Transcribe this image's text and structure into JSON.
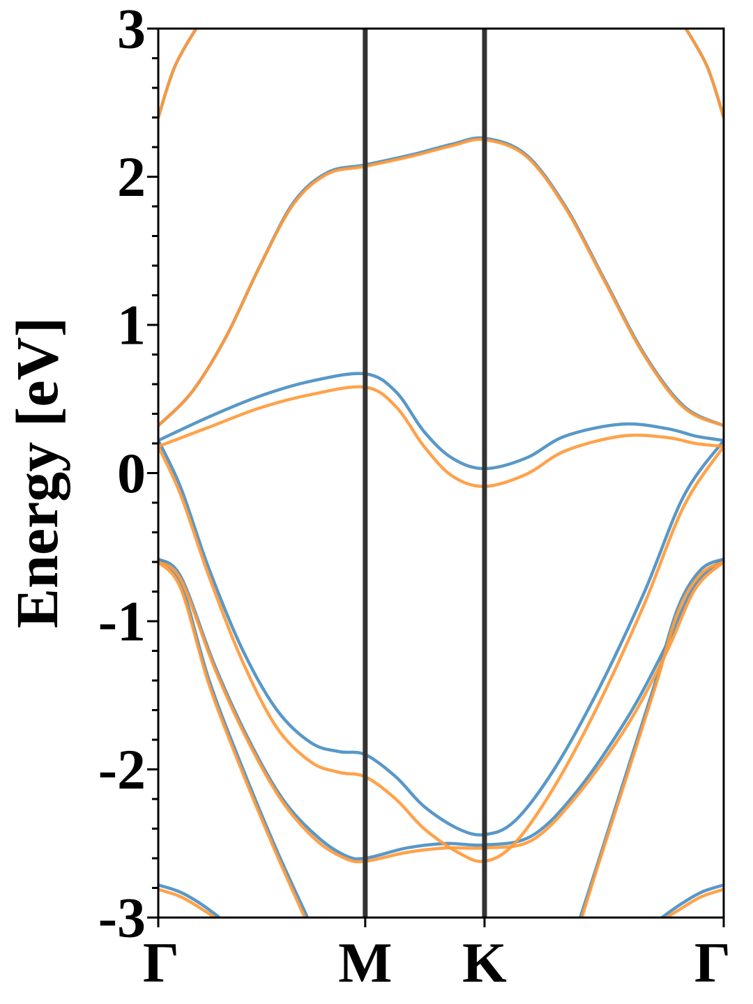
{
  "chart_data": {
    "type": "line",
    "title": "",
    "xlabel": "",
    "ylabel": "Energy [eV]",
    "ylim": [
      -3,
      3
    ],
    "yticks": [
      "3",
      "2",
      "1",
      "0",
      "-1",
      "-2",
      "-3"
    ],
    "xrange": [
      0,
      1
    ],
    "high_symmetry_points": [
      {
        "label": "Γ",
        "x": 0.0
      },
      {
        "label": "M",
        "x": 0.366
      },
      {
        "label": "K",
        "x": 0.577
      },
      {
        "label": "Γ",
        "x": 1.0
      }
    ],
    "grid": false,
    "legend": "none",
    "colors": {
      "series_a": "#4a8fc2",
      "series_b": "#ff9a3c",
      "vline": "#333333"
    },
    "series": [
      {
        "color": "#4a8fc2",
        "bands": [
          [
            [
              0,
              2.4
            ],
            [
              0.03,
              2.75
            ],
            [
              0.075,
              3.05
            ]
          ],
          [
            [
              0.925,
              3.05
            ],
            [
              0.97,
              2.75
            ],
            [
              1,
              2.4
            ]
          ],
          [
            [
              0,
              0.32
            ],
            [
              0.06,
              0.55
            ],
            [
              0.12,
              0.92
            ],
            [
              0.18,
              1.4
            ],
            [
              0.24,
              1.83
            ],
            [
              0.3,
              2.03
            ],
            [
              0.366,
              2.08
            ],
            [
              0.45,
              2.15
            ],
            [
              0.52,
              2.22
            ],
            [
              0.577,
              2.26
            ],
            [
              0.65,
              2.15
            ],
            [
              0.72,
              1.8
            ],
            [
              0.79,
              1.3
            ],
            [
              0.86,
              0.8
            ],
            [
              0.93,
              0.45
            ],
            [
              1,
              0.32
            ]
          ],
          [
            [
              0,
              0.22
            ],
            [
              0.09,
              0.38
            ],
            [
              0.18,
              0.52
            ],
            [
              0.27,
              0.62
            ],
            [
              0.366,
              0.67
            ],
            [
              0.42,
              0.55
            ],
            [
              0.47,
              0.28
            ],
            [
              0.52,
              0.1
            ],
            [
              0.577,
              0.03
            ],
            [
              0.65,
              0.1
            ],
            [
              0.72,
              0.25
            ],
            [
              0.82,
              0.33
            ],
            [
              0.9,
              0.3
            ],
            [
              0.95,
              0.25
            ],
            [
              1,
              0.22
            ]
          ],
          [
            [
              0,
              0.22
            ],
            [
              0.04,
              -0.1
            ],
            [
              0.09,
              -0.65
            ],
            [
              0.15,
              -1.2
            ],
            [
              0.21,
              -1.6
            ],
            [
              0.27,
              -1.82
            ],
            [
              0.32,
              -1.88
            ],
            [
              0.366,
              -1.9
            ],
            [
              0.42,
              -2.05
            ],
            [
              0.47,
              -2.25
            ],
            [
              0.53,
              -2.4
            ],
            [
              0.577,
              -2.44
            ],
            [
              0.63,
              -2.35
            ],
            [
              0.7,
              -2.0
            ],
            [
              0.78,
              -1.45
            ],
            [
              0.86,
              -0.8
            ],
            [
              0.93,
              -0.15
            ],
            [
              1,
              0.22
            ]
          ],
          [
            [
              0,
              -0.58
            ],
            [
              0.04,
              -0.7
            ],
            [
              0.1,
              -1.3
            ],
            [
              0.16,
              -1.8
            ],
            [
              0.22,
              -2.2
            ],
            [
              0.28,
              -2.45
            ],
            [
              0.33,
              -2.58
            ],
            [
              0.366,
              -2.6
            ],
            [
              0.44,
              -2.53
            ],
            [
              0.51,
              -2.5
            ],
            [
              0.577,
              -2.51
            ],
            [
              0.66,
              -2.45
            ],
            [
              0.74,
              -2.15
            ],
            [
              0.83,
              -1.65
            ],
            [
              0.9,
              -1.15
            ],
            [
              0.95,
              -0.75
            ],
            [
              1,
              -0.58
            ]
          ],
          [
            [
              0,
              -0.58
            ],
            [
              0.04,
              -0.75
            ],
            [
              0.09,
              -1.4
            ],
            [
              0.15,
              -2.0
            ],
            [
              0.21,
              -2.55
            ],
            [
              0.27,
              -3.05
            ]
          ],
          [
            [
              0.742,
              -3.05
            ],
            [
              0.78,
              -2.6
            ],
            [
              0.83,
              -2.0
            ],
            [
              0.88,
              -1.4
            ],
            [
              0.92,
              -0.9
            ],
            [
              0.96,
              -0.65
            ],
            [
              1,
              -0.58
            ]
          ],
          [
            [
              0,
              -2.78
            ],
            [
              0.04,
              -2.83
            ],
            [
              0.08,
              -2.92
            ],
            [
              0.125,
              -3.05
            ]
          ],
          [
            [
              0.873,
              -3.05
            ],
            [
              0.92,
              -2.92
            ],
            [
              0.96,
              -2.83
            ],
            [
              1,
              -2.78
            ]
          ]
        ]
      },
      {
        "color": "#ff9a3c",
        "bands": [
          [
            [
              0,
              2.4
            ],
            [
              0.03,
              2.75
            ],
            [
              0.075,
              3.05
            ]
          ],
          [
            [
              0.925,
              3.05
            ],
            [
              0.97,
              2.75
            ],
            [
              1,
              2.4
            ]
          ],
          [
            [
              0,
              0.32
            ],
            [
              0.06,
              0.55
            ],
            [
              0.12,
              0.92
            ],
            [
              0.18,
              1.4
            ],
            [
              0.24,
              1.82
            ],
            [
              0.3,
              2.02
            ],
            [
              0.366,
              2.07
            ],
            [
              0.45,
              2.14
            ],
            [
              0.52,
              2.21
            ],
            [
              0.577,
              2.25
            ],
            [
              0.65,
              2.14
            ],
            [
              0.72,
              1.79
            ],
            [
              0.79,
              1.29
            ],
            [
              0.86,
              0.79
            ],
            [
              0.93,
              0.44
            ],
            [
              1,
              0.32
            ]
          ],
          [
            [
              0,
              0.18
            ],
            [
              0.09,
              0.31
            ],
            [
              0.18,
              0.44
            ],
            [
              0.27,
              0.53
            ],
            [
              0.366,
              0.58
            ],
            [
              0.42,
              0.45
            ],
            [
              0.47,
              0.18
            ],
            [
              0.52,
              -0.02
            ],
            [
              0.577,
              -0.09
            ],
            [
              0.65,
              -0.01
            ],
            [
              0.72,
              0.15
            ],
            [
              0.82,
              0.25
            ],
            [
              0.9,
              0.24
            ],
            [
              0.95,
              0.2
            ],
            [
              1,
              0.18
            ]
          ],
          [
            [
              0,
              0.18
            ],
            [
              0.04,
              -0.15
            ],
            [
              0.09,
              -0.7
            ],
            [
              0.15,
              -1.28
            ],
            [
              0.21,
              -1.72
            ],
            [
              0.27,
              -1.95
            ],
            [
              0.32,
              -2.02
            ],
            [
              0.366,
              -2.05
            ],
            [
              0.42,
              -2.2
            ],
            [
              0.47,
              -2.4
            ],
            [
              0.53,
              -2.56
            ],
            [
              0.577,
              -2.62
            ],
            [
              0.63,
              -2.5
            ],
            [
              0.7,
              -2.12
            ],
            [
              0.78,
              -1.55
            ],
            [
              0.86,
              -0.88
            ],
            [
              0.93,
              -0.22
            ],
            [
              1,
              0.18
            ]
          ],
          [
            [
              0,
              -0.6
            ],
            [
              0.04,
              -0.72
            ],
            [
              0.1,
              -1.32
            ],
            [
              0.16,
              -1.82
            ],
            [
              0.22,
              -2.22
            ],
            [
              0.28,
              -2.48
            ],
            [
              0.33,
              -2.6
            ],
            [
              0.366,
              -2.62
            ],
            [
              0.44,
              -2.56
            ],
            [
              0.51,
              -2.53
            ],
            [
              0.577,
              -2.53
            ],
            [
              0.66,
              -2.48
            ],
            [
              0.74,
              -2.18
            ],
            [
              0.83,
              -1.7
            ],
            [
              0.9,
              -1.2
            ],
            [
              0.95,
              -0.78
            ],
            [
              1,
              -0.6
            ]
          ],
          [
            [
              0,
              -0.6
            ],
            [
              0.04,
              -0.78
            ],
            [
              0.09,
              -1.43
            ],
            [
              0.15,
              -2.03
            ],
            [
              0.21,
              -2.58
            ],
            [
              0.265,
              -3.05
            ]
          ],
          [
            [
              0.745,
              -3.05
            ],
            [
              0.78,
              -2.62
            ],
            [
              0.83,
              -2.03
            ],
            [
              0.88,
              -1.43
            ],
            [
              0.92,
              -0.93
            ],
            [
              0.96,
              -0.68
            ],
            [
              1,
              -0.6
            ]
          ],
          [
            [
              0,
              -2.81
            ],
            [
              0.04,
              -2.86
            ],
            [
              0.08,
              -2.95
            ],
            [
              0.12,
              -3.05
            ]
          ],
          [
            [
              0.878,
              -3.05
            ],
            [
              0.92,
              -2.95
            ],
            [
              0.96,
              -2.86
            ],
            [
              1,
              -2.81
            ]
          ]
        ]
      }
    ]
  }
}
